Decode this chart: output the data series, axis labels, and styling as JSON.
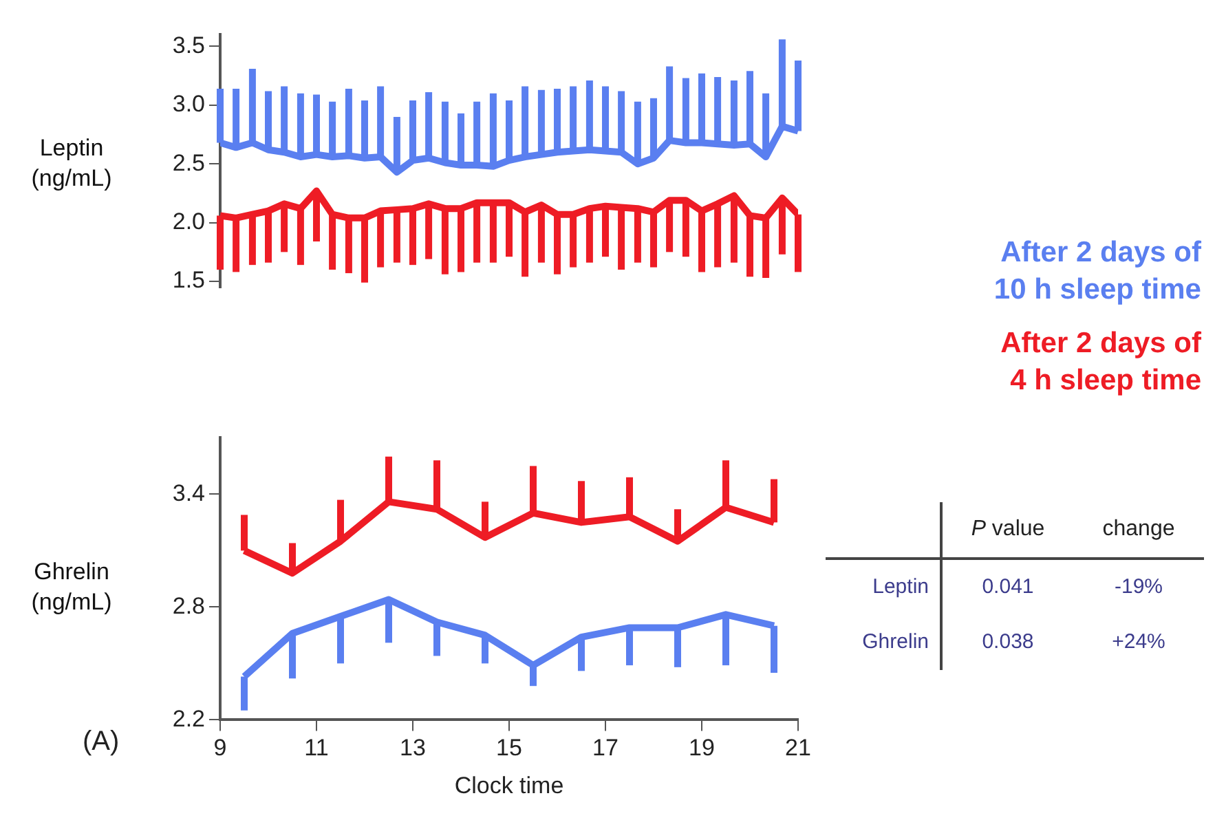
{
  "chart_data": [
    {
      "type": "line",
      "ylabel": "Leptin (ng/mL)",
      "legend": "right",
      "marker": "none",
      "grid": false,
      "tick_labels": "y",
      "xlim": [
        9,
        21
      ],
      "ylim": [
        1.45,
        3.6
      ],
      "yticks": [
        1.5,
        {
          "value": 2,
          "label": "2.0"
        },
        2.5,
        {
          "value": 3,
          "label": "3.0"
        },
        3.5
      ],
      "series": [
        {
          "name": "After 2 days of 10 h sleep time",
          "color": "#5a7ff0",
          "x": [
            9,
            9.33,
            9.67,
            10,
            10.33,
            10.67,
            11,
            11.33,
            11.67,
            12,
            12.33,
            12.67,
            13,
            13.33,
            13.67,
            14,
            14.33,
            14.67,
            15,
            15.33,
            15.67,
            16,
            16.33,
            16.67,
            17,
            17.33,
            17.67,
            18,
            18.33,
            18.67,
            19,
            19.33,
            19.67,
            20,
            20.33,
            20.67,
            21
          ],
          "values": [
            2.68,
            2.64,
            2.68,
            2.62,
            2.6,
            2.56,
            2.58,
            2.56,
            2.57,
            2.55,
            2.56,
            2.43,
            2.53,
            2.55,
            2.51,
            2.49,
            2.49,
            2.48,
            2.53,
            2.56,
            2.58,
            2.6,
            2.61,
            2.62,
            2.61,
            2.6,
            2.5,
            2.55,
            2.7,
            2.68,
            2.68,
            2.67,
            2.66,
            2.67,
            2.56,
            2.82,
            2.78
          ],
          "errors": [
            [
              2.68,
              3.14
            ],
            [
              2.64,
              3.14
            ],
            [
              2.68,
              3.31
            ],
            [
              2.62,
              3.12
            ],
            [
              2.6,
              3.16
            ],
            [
              2.56,
              3.1
            ],
            [
              2.58,
              3.09
            ],
            [
              2.56,
              3.03
            ],
            [
              2.57,
              3.14
            ],
            [
              2.55,
              3.04
            ],
            [
              2.56,
              3.16
            ],
            [
              2.43,
              2.9
            ],
            [
              2.53,
              3.04
            ],
            [
              2.55,
              3.11
            ],
            [
              2.51,
              3.03
            ],
            [
              2.49,
              2.93
            ],
            [
              2.49,
              3.03
            ],
            [
              2.48,
              3.1
            ],
            [
              2.53,
              3.04
            ],
            [
              2.56,
              3.16
            ],
            [
              2.58,
              3.13
            ],
            [
              2.6,
              3.14
            ],
            [
              2.61,
              3.16
            ],
            [
              2.62,
              3.21
            ],
            [
              2.61,
              3.16
            ],
            [
              2.6,
              3.12
            ],
            [
              2.5,
              3.03
            ],
            [
              2.55,
              3.06
            ],
            [
              2.7,
              3.33
            ],
            [
              2.68,
              3.23
            ],
            [
              2.68,
              3.27
            ],
            [
              2.67,
              3.24
            ],
            [
              2.66,
              3.21
            ],
            [
              2.67,
              3.29
            ],
            [
              2.56,
              3.1
            ],
            [
              2.82,
              3.56
            ],
            [
              2.78,
              3.38
            ]
          ]
        },
        {
          "name": "After 2 days of 4 h sleep time",
          "color": "#ee1c25",
          "x": [
            9,
            9.33,
            9.67,
            10,
            10.33,
            10.67,
            11,
            11.33,
            11.67,
            12,
            12.33,
            12.67,
            13,
            13.33,
            13.67,
            14,
            14.33,
            14.67,
            15,
            15.33,
            15.67,
            16,
            16.33,
            16.67,
            17,
            17.33,
            17.67,
            18,
            18.33,
            18.67,
            19,
            19.33,
            19.67,
            20,
            20.33,
            20.67,
            21
          ],
          "values": [
            2.06,
            2.04,
            2.07,
            2.1,
            2.16,
            2.12,
            2.27,
            2.07,
            2.04,
            2.04,
            2.1,
            2.11,
            2.12,
            2.16,
            2.12,
            2.12,
            2.17,
            2.17,
            2.17,
            2.09,
            2.15,
            2.07,
            2.07,
            2.12,
            2.14,
            2.13,
            2.12,
            2.09,
            2.19,
            2.19,
            2.1,
            2.16,
            2.23,
            2.06,
            2.04,
            2.21,
            2.07
          ],
          "errors": [
            [
              1.6,
              2.06
            ],
            [
              1.58,
              2.04
            ],
            [
              1.64,
              2.07
            ],
            [
              1.66,
              2.1
            ],
            [
              1.75,
              2.16
            ],
            [
              1.64,
              2.12
            ],
            [
              1.84,
              2.27
            ],
            [
              1.6,
              2.07
            ],
            [
              1.57,
              2.04
            ],
            [
              1.49,
              2.04
            ],
            [
              1.62,
              2.1
            ],
            [
              1.66,
              2.11
            ],
            [
              1.64,
              2.12
            ],
            [
              1.69,
              2.16
            ],
            [
              1.56,
              2.12
            ],
            [
              1.58,
              2.12
            ],
            [
              1.66,
              2.17
            ],
            [
              1.66,
              2.17
            ],
            [
              1.71,
              2.17
            ],
            [
              1.54,
              2.09
            ],
            [
              1.66,
              2.15
            ],
            [
              1.56,
              2.07
            ],
            [
              1.62,
              2.07
            ],
            [
              1.66,
              2.12
            ],
            [
              1.71,
              2.14
            ],
            [
              1.6,
              2.13
            ],
            [
              1.66,
              2.12
            ],
            [
              1.62,
              2.09
            ],
            [
              1.75,
              2.19
            ],
            [
              1.71,
              2.19
            ],
            [
              1.58,
              2.1
            ],
            [
              1.62,
              2.16
            ],
            [
              1.66,
              2.23
            ],
            [
              1.54,
              2.06
            ],
            [
              1.53,
              2.04
            ],
            [
              1.73,
              2.21
            ],
            [
              1.58,
              2.07
            ]
          ]
        }
      ]
    },
    {
      "type": "line",
      "ylabel": "Ghrelin (ng/mL)",
      "xlabel": "Clock time",
      "marker": "none",
      "grid": false,
      "xlim": [
        9,
        21
      ],
      "xticks": [
        9,
        11,
        13,
        15,
        17,
        19,
        21
      ],
      "ylim": [
        2.2,
        3.7
      ],
      "yticks": [
        2.2,
        2.8,
        3.4
      ],
      "annotations": [
        "(A)",
        "P value",
        "change",
        "Leptin",
        "0.041",
        "-19%",
        "Ghrelin",
        "0.038",
        "+24%"
      ],
      "series": [
        {
          "color": "#ee1c25",
          "x": [
            9.5,
            10.5,
            11.5,
            12.5,
            13.5,
            14.5,
            15.5,
            16.5,
            17.5,
            18.5,
            19.5,
            20.5
          ],
          "values": [
            3.1,
            2.98,
            3.15,
            3.36,
            3.32,
            3.17,
            3.3,
            3.25,
            3.28,
            3.15,
            3.33,
            3.25
          ],
          "errors": [
            [
              3.1,
              3.29
            ],
            [
              2.98,
              3.14
            ],
            [
              3.15,
              3.37
            ],
            [
              3.36,
              3.6
            ],
            [
              3.32,
              3.58
            ],
            [
              3.17,
              3.36
            ],
            [
              3.3,
              3.55
            ],
            [
              3.25,
              3.47
            ],
            [
              3.28,
              3.49
            ],
            [
              3.15,
              3.32
            ],
            [
              3.33,
              3.58
            ],
            [
              3.25,
              3.48
            ]
          ]
        },
        {
          "color": "#5a7ff0",
          "x": [
            9.5,
            10.5,
            11.5,
            12.5,
            13.5,
            14.5,
            15.5,
            16.5,
            17.5,
            18.5,
            19.5,
            20.5
          ],
          "values": [
            2.43,
            2.66,
            2.75,
            2.84,
            2.72,
            2.65,
            2.49,
            2.64,
            2.69,
            2.69,
            2.76,
            2.7
          ],
          "errors": [
            [
              2.25,
              2.43
            ],
            [
              2.42,
              2.66
            ],
            [
              2.5,
              2.75
            ],
            [
              2.61,
              2.84
            ],
            [
              2.54,
              2.72
            ],
            [
              2.5,
              2.65
            ],
            [
              2.38,
              2.49
            ],
            [
              2.46,
              2.64
            ],
            [
              2.49,
              2.69
            ],
            [
              2.48,
              2.69
            ],
            [
              2.49,
              2.76
            ],
            [
              2.45,
              2.7
            ]
          ]
        }
      ]
    }
  ]
}
